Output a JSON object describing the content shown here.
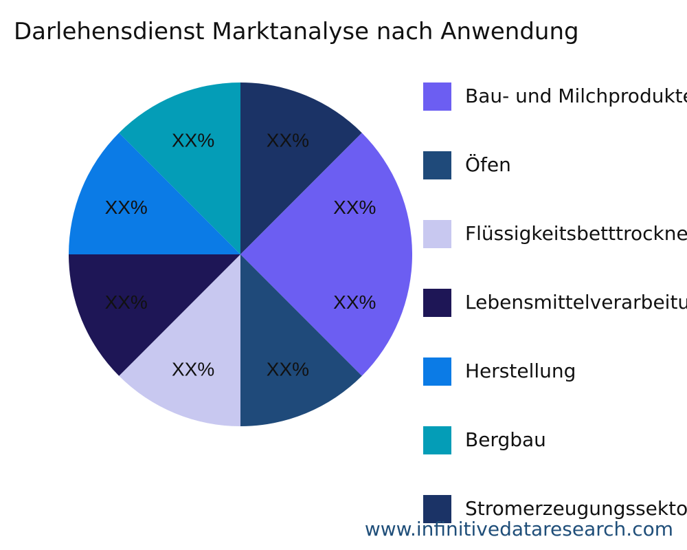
{
  "chart_data": {
    "type": "pie",
    "title": "Darlehensdienst Marktanalyse nach Anwendung",
    "slices": [
      {
        "label": "Stromerzeugungssektor",
        "value": 12.5,
        "display": "XX%",
        "color": "#1b3366"
      },
      {
        "label": "Bau- und Milchprodukte",
        "value": 25,
        "display": "XX%",
        "display2": "XX%",
        "color": "#6c5ef2"
      },
      {
        "label": "Öfen",
        "value": 12.5,
        "display": "XX%",
        "color": "#1f4a7a"
      },
      {
        "label": "Flüssigkeitsbetttrockner",
        "value": 12.5,
        "display": "XX%",
        "color": "#c8c8f0"
      },
      {
        "label": "Lebensmittelverarbeitung",
        "value": 12.5,
        "display": "XX%",
        "color": "#1e1656"
      },
      {
        "label": "Herstellung",
        "value": 12.5,
        "display": "XX%",
        "color": "#0b7be6"
      },
      {
        "label": "Bergbau",
        "value": 12.5,
        "display": "XX%",
        "color": "#049db7"
      }
    ],
    "legend": [
      {
        "label": "Bau- und Milchprodukte",
        "color": "#6c5ef2"
      },
      {
        "label": "Öfen",
        "color": "#1f4a7a"
      },
      {
        "label": "Flüssigkeitsbetttrockner",
        "color": "#c8c8f0"
      },
      {
        "label": "Lebensmittelverarbeitung",
        "color": "#1e1656"
      },
      {
        "label": "Herstellung",
        "color": "#0b7be6"
      },
      {
        "label": "Bergbau",
        "color": "#049db7"
      },
      {
        "label": "Stromerzeugungssektor",
        "color": "#1b3366"
      }
    ],
    "legend_position": "right"
  },
  "source": "www.infinitivedataresearch.com"
}
